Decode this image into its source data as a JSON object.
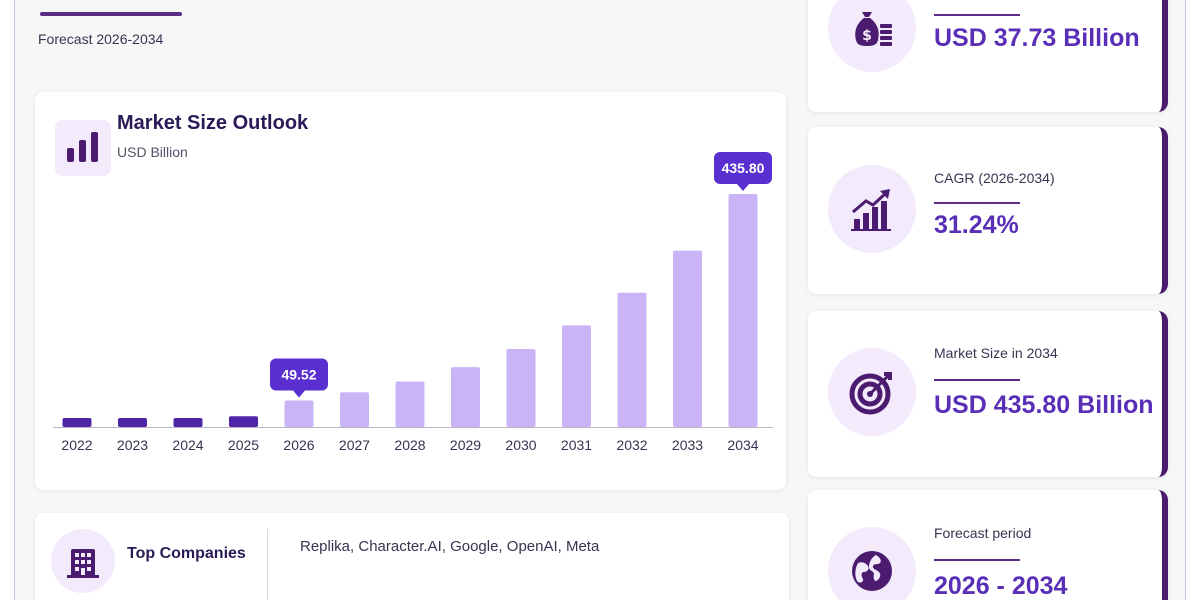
{
  "header": {
    "forecast_subtitle": "Forecast 2026-2034"
  },
  "chart_card": {
    "title": "Market Size Outlook",
    "unit": "USD Billion"
  },
  "chart_data": {
    "type": "bar",
    "title": "Market Size Outlook",
    "ylabel": "USD Billion",
    "categories": [
      "2022",
      "2023",
      "2024",
      "2025",
      "2026",
      "2027",
      "2028",
      "2029",
      "2030",
      "2031",
      "2032",
      "2033",
      "2034"
    ],
    "values": [
      8.5,
      11.5,
      15.5,
      20.0,
      49.52,
      65.0,
      85.0,
      112.0,
      146.0,
      190.0,
      251.0,
      330.0,
      435.8
    ],
    "ylim": [
      0,
      435.8
    ],
    "callouts": [
      {
        "category": "2026",
        "label": "49.52"
      },
      {
        "category": "2034",
        "label": "435.80"
      }
    ],
    "colors": {
      "historical": "#4f25a8",
      "forecast": "#c9b5f5",
      "callout": "#5a2fd0",
      "axis": "#b9b4c8"
    },
    "grid": false,
    "legend": "none"
  },
  "companies": {
    "label": "Top Companies",
    "list": "Replika, Character.AI, Google, OpenAI, Meta",
    "icon": "building-icon"
  },
  "stats": [
    {
      "label": "",
      "value": "USD 37.73 Billion",
      "icon": "money-bag-icon"
    },
    {
      "label": "CAGR (2026-2034)",
      "value": "31.24%",
      "icon": "growth-chart-icon"
    },
    {
      "label": "Market Size in 2034",
      "value": "USD 435.80 Billion",
      "icon": "target-icon"
    },
    {
      "label": "Forecast period",
      "value": "2026 - 2034",
      "icon": "globe-icon"
    }
  ]
}
